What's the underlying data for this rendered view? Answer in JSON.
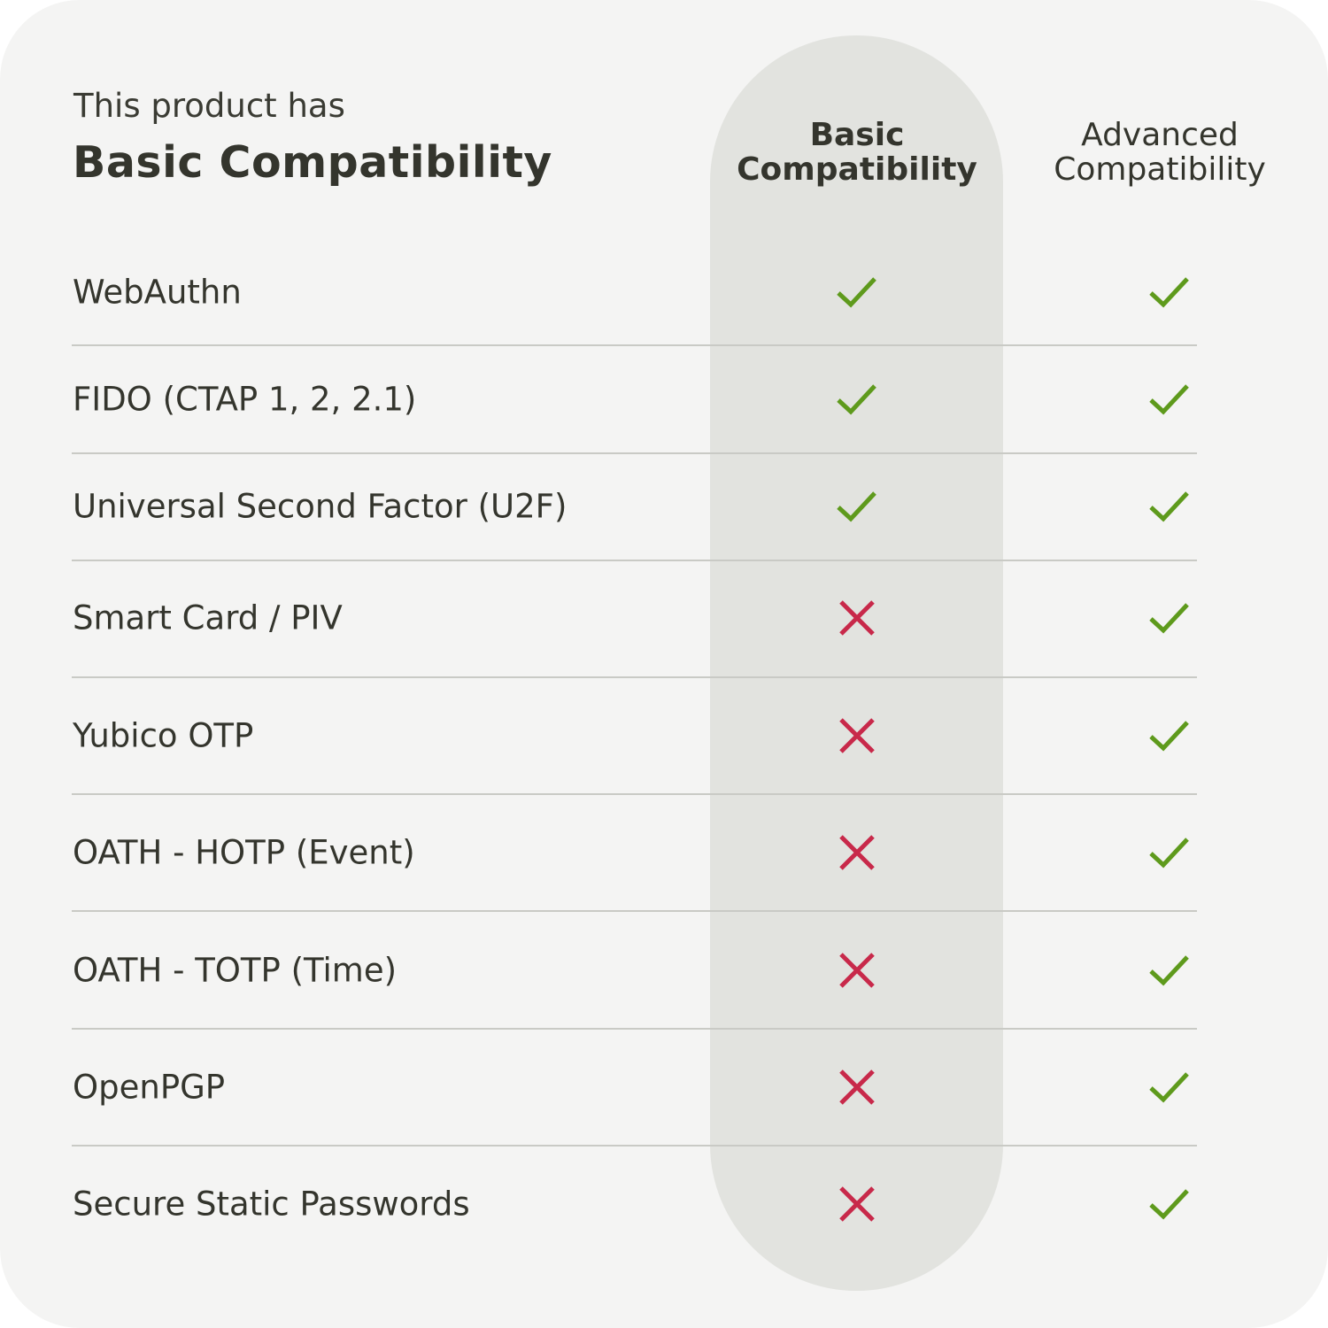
{
  "header": {
    "intro": "This product has",
    "title": "Basic Compatibility"
  },
  "columns": [
    {
      "label_line1": "Basic",
      "label_line2": "Compatibility",
      "highlighted": true
    },
    {
      "label_line1": "Advanced",
      "label_line2": "Compatibility",
      "highlighted": false
    }
  ],
  "colors": {
    "check": "#5e9a1c",
    "cross": "#c8294a",
    "highlight": "#e2e3df"
  },
  "rows": [
    {
      "feature": "WebAuthn",
      "basic": true,
      "advanced": true
    },
    {
      "feature": "FIDO (CTAP 1, 2, 2.1)",
      "basic": true,
      "advanced": true
    },
    {
      "feature": "Universal Second Factor (U2F)",
      "basic": true,
      "advanced": true
    },
    {
      "feature": "Smart Card / PIV",
      "basic": false,
      "advanced": true
    },
    {
      "feature": "Yubico OTP",
      "basic": false,
      "advanced": true
    },
    {
      "feature": "OATH - HOTP (Event)",
      "basic": false,
      "advanced": true
    },
    {
      "feature": "OATH - TOTP (Time)",
      "basic": false,
      "advanced": true
    },
    {
      "feature": "OpenPGP",
      "basic": false,
      "advanced": true
    },
    {
      "feature": "Secure Static Passwords",
      "basic": false,
      "advanced": true
    }
  ]
}
